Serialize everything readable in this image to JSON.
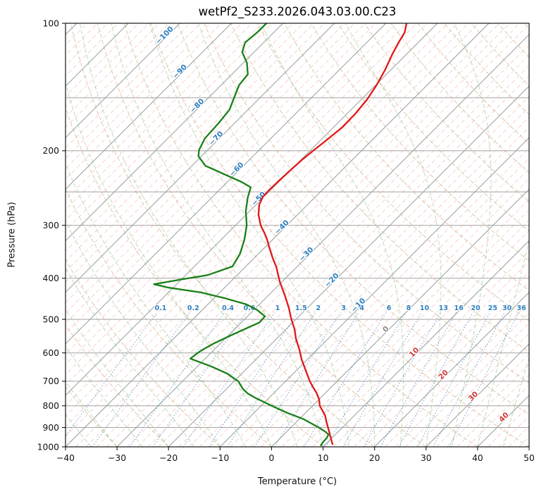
{
  "title": "wetPf2_S233.2026.043.03.00.C23",
  "axes": {
    "x_label": "Temperature (°C)",
    "y_label": "Pressure (hPa)",
    "x_ticks": [
      -40,
      -30,
      -20,
      -10,
      0,
      10,
      20,
      30,
      40,
      50
    ],
    "x_tick_labels": [
      "−40",
      "−30",
      "−20",
      "−10",
      "0",
      "10",
      "20",
      "30",
      "40",
      "50"
    ],
    "y_ticks": [
      100,
      200,
      300,
      400,
      500,
      600,
      700,
      800,
      900,
      1000
    ],
    "y_tick_labels": [
      "100",
      "200",
      "300",
      "400",
      "500",
      "600",
      "700",
      "800",
      "900",
      "1000"
    ]
  },
  "colors": {
    "isobar": "#a3a3a3",
    "isotherm_major": "#9a9a9a",
    "isotherm_minor": "#f0998c",
    "dry_adiabat": "#c9ab7e",
    "moist_adiabat": "#8fc48f",
    "mixing_ratio": "#3d7fc1",
    "temperature": "#e01717",
    "dewpoint": "#188018",
    "label_negative": "#2f7fbf",
    "label_zero": "#8a8a8a",
    "label_positive": "#d03b3b",
    "axis": "#000000"
  },
  "chart_data": {
    "type": "line",
    "variant": "skew-t-log-p",
    "t_range": [
      -40,
      50
    ],
    "p_range": [
      100,
      1000
    ],
    "skew": "45deg",
    "grid": true,
    "isobar_levels": [
      100,
      150,
      200,
      250,
      300,
      400,
      500,
      600,
      700,
      800,
      900,
      1000
    ],
    "isotherms": {
      "min_c": -160,
      "max_c": 50,
      "major_step_c": 10,
      "minor_step_c": 2
    },
    "isotherm_labels": [
      -100,
      -90,
      -80,
      -70,
      -60,
      -50,
      -40,
      -30,
      -20,
      -10,
      0,
      10,
      20,
      30,
      40
    ],
    "dry_adiabats": {
      "theta_min_c": -40,
      "theta_max_c": 200,
      "step_c": 10
    },
    "moist_adiabats": {
      "t0_min_c": -40,
      "t0_max_c": 45,
      "step_c": 5
    },
    "mixing_ratio": {
      "values_g_per_kg": [
        0.1,
        0.2,
        0.4,
        0.6,
        1,
        1.5,
        2,
        3,
        4,
        6,
        8,
        10,
        13,
        16,
        20,
        25,
        30,
        36
      ],
      "labels": [
        "0.1",
        "0.2",
        "0.4",
        "0.6",
        "1",
        "1.5",
        "2",
        "3",
        "4",
        "6",
        "8",
        "10",
        "13",
        "16",
        "20",
        "25",
        "30",
        "36"
      ],
      "label_pressure_hpa": 470,
      "top_pressure_hpa": 482
    },
    "series": [
      {
        "name": "temperature",
        "label": "Temperature",
        "units": "°C",
        "points_p_t": [
          [
            100,
            -56
          ],
          [
            105,
            -54.6
          ],
          [
            111,
            -53.8
          ],
          [
            118,
            -52.8
          ],
          [
            129,
            -51.1
          ],
          [
            140,
            -49.8
          ],
          [
            151,
            -48.9
          ],
          [
            163,
            -48.4
          ],
          [
            176,
            -48.3
          ],
          [
            190,
            -48.9
          ],
          [
            200,
            -49.4
          ],
          [
            210,
            -49.8
          ],
          [
            221,
            -50
          ],
          [
            235,
            -50.2
          ],
          [
            248,
            -50.3
          ],
          [
            257,
            -50.2
          ],
          [
            268,
            -49.4
          ],
          [
            283,
            -47.6
          ],
          [
            300,
            -45.1
          ],
          [
            312,
            -43
          ],
          [
            324,
            -41.1
          ],
          [
            337,
            -39.3
          ],
          [
            357,
            -36.6
          ],
          [
            376,
            -34
          ],
          [
            408,
            -30.4
          ],
          [
            424,
            -28.5
          ],
          [
            440,
            -26.7
          ],
          [
            470,
            -23.6
          ],
          [
            500,
            -20.9
          ],
          [
            527,
            -18.4
          ],
          [
            555,
            -16.3
          ],
          [
            589,
            -13.5
          ],
          [
            622,
            -11.1
          ],
          [
            660,
            -8.2
          ],
          [
            700,
            -5.3
          ],
          [
            722,
            -3.6
          ],
          [
            745,
            -1.8
          ],
          [
            772,
            0
          ],
          [
            800,
            1.4
          ],
          [
            843,
            4.3
          ],
          [
            871,
            5.7
          ],
          [
            900,
            7.2
          ],
          [
            922,
            8.3
          ],
          [
            945,
            9.4
          ],
          [
            966,
            10.4
          ],
          [
            985,
            11.3
          ]
        ]
      },
      {
        "name": "dewpoint",
        "label": "Dew point",
        "units": "°C",
        "points_p_t": [
          [
            100,
            -83.2
          ],
          [
            105,
            -83.2
          ],
          [
            111,
            -83.6
          ],
          [
            117,
            -82.3
          ],
          [
            124,
            -79.3
          ],
          [
            132,
            -76.9
          ],
          [
            140,
            -76.5
          ],
          [
            148,
            -75.3
          ],
          [
            160,
            -73.6
          ],
          [
            172,
            -73.1
          ],
          [
            187,
            -72.8
          ],
          [
            199,
            -71.7
          ],
          [
            206,
            -70.6
          ],
          [
            217,
            -67.4
          ],
          [
            228,
            -61.7
          ],
          [
            237,
            -57.2
          ],
          [
            244,
            -54.4
          ],
          [
            258,
            -53
          ],
          [
            278,
            -50.7
          ],
          [
            300,
            -47.8
          ],
          [
            324,
            -45.5
          ],
          [
            350,
            -43.6
          ],
          [
            375,
            -42.6
          ],
          [
            393,
            -45.7
          ],
          [
            403,
            -50.2
          ],
          [
            413,
            -54.4
          ],
          [
            421,
            -50.8
          ],
          [
            432,
            -43.7
          ],
          [
            446,
            -37.8
          ],
          [
            461,
            -32.5
          ],
          [
            475,
            -29.4
          ],
          [
            492,
            -26.6
          ],
          [
            509,
            -26.5
          ],
          [
            523,
            -27.7
          ],
          [
            544,
            -29.4
          ],
          [
            569,
            -31.2
          ],
          [
            594,
            -32.4
          ],
          [
            619,
            -32.9
          ],
          [
            646,
            -27.3
          ],
          [
            671,
            -22.9
          ],
          [
            700,
            -19.2
          ],
          [
            730,
            -16.8
          ],
          [
            748,
            -15
          ],
          [
            766,
            -12.7
          ],
          [
            800,
            -7.9
          ],
          [
            831,
            -3.6
          ],
          [
            860,
            0.8
          ],
          [
            900,
            5.4
          ],
          [
            922,
            7.6
          ],
          [
            936,
            8.7
          ],
          [
            954,
            9
          ],
          [
            977,
            9.1
          ],
          [
            992,
            9.3
          ]
        ]
      }
    ]
  }
}
